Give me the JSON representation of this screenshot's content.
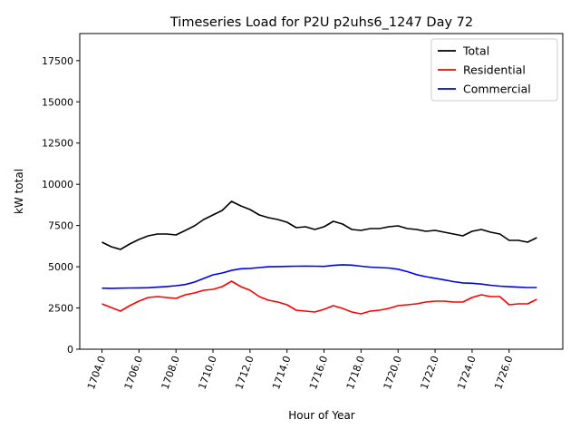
{
  "chart_data": {
    "type": "line",
    "title": "Timeseries Load for P2U p2uhs6_1247  Day 72",
    "xlabel": "Hour of Year",
    "ylabel": "kW total",
    "xlim": [
      1702.8,
      1728.9
    ],
    "ylim": [
      0,
      19140
    ],
    "xticks": [
      1704,
      1706,
      1708,
      1710,
      1712,
      1714,
      1716,
      1718,
      1720,
      1722,
      1724,
      1726
    ],
    "xtick_labels": [
      "1704.0",
      "1706.0",
      "1708.0",
      "1710.0",
      "1712.0",
      "1714.0",
      "1716.0",
      "1718.0",
      "1720.0",
      "1722.0",
      "1724.0",
      "1726.0"
    ],
    "yticks": [
      0,
      2500,
      5000,
      7500,
      10000,
      12500,
      15000,
      17500
    ],
    "ytick_labels": [
      "0",
      "2500",
      "5000",
      "7500",
      "10000",
      "12500",
      "15000",
      "17500"
    ],
    "grid": false,
    "legend_position": "top-right",
    "x": [
      1704,
      1704.5,
      1705,
      1705.5,
      1706,
      1706.5,
      1707,
      1707.5,
      1708,
      1708.5,
      1709,
      1709.5,
      1710,
      1710.5,
      1711,
      1711.5,
      1712,
      1712.5,
      1713,
      1713.5,
      1714,
      1714.5,
      1715,
      1715.5,
      1716,
      1716.5,
      1717,
      1717.5,
      1718,
      1718.5,
      1719,
      1719.5,
      1720,
      1720.5,
      1721,
      1721.5,
      1722,
      1722.5,
      1723,
      1723.5,
      1724,
      1724.5,
      1725,
      1725.5,
      1726,
      1726.5,
      1727,
      1727.5
    ],
    "series": [
      {
        "name": "Total",
        "color": "#000000",
        "values": [
          6490,
          6215,
          6050,
          6380,
          6655,
          6875,
          6985,
          6985,
          6930,
          7200,
          7480,
          7865,
          8140,
          8415,
          8965,
          8690,
          8470,
          8140,
          7975,
          7865,
          7700,
          7370,
          7425,
          7260,
          7425,
          7755,
          7590,
          7260,
          7205,
          7315,
          7315,
          7425,
          7480,
          7315,
          7260,
          7150,
          7205,
          7095,
          6985,
          6875,
          7150,
          7260,
          7095,
          6985,
          6600,
          6600,
          6490,
          6765
        ]
      },
      {
        "name": "Residential",
        "color": "#ff0000",
        "values": [
          2750,
          2530,
          2310,
          2640,
          2915,
          3135,
          3190,
          3135,
          3080,
          3300,
          3410,
          3575,
          3630,
          3795,
          4125,
          3795,
          3575,
          3190,
          2970,
          2860,
          2695,
          2365,
          2310,
          2255,
          2420,
          2640,
          2475,
          2255,
          2145,
          2310,
          2365,
          2475,
          2640,
          2695,
          2750,
          2860,
          2915,
          2915,
          2860,
          2860,
          3135,
          3300,
          3190,
          3190,
          2695,
          2750,
          2750,
          3025
        ]
      },
      {
        "name": "Commercial",
        "color": "#0000ff",
        "values": [
          3700,
          3690,
          3700,
          3710,
          3720,
          3730,
          3760,
          3800,
          3850,
          3920,
          4070,
          4290,
          4510,
          4620,
          4780,
          4880,
          4900,
          4950,
          5000,
          5010,
          5020,
          5030,
          5040,
          5030,
          5020,
          5080,
          5120,
          5100,
          5030,
          4980,
          4950,
          4920,
          4850,
          4700,
          4520,
          4400,
          4300,
          4200,
          4100,
          4020,
          4000,
          3950,
          3880,
          3820,
          3790,
          3760,
          3740,
          3740
        ]
      }
    ]
  }
}
